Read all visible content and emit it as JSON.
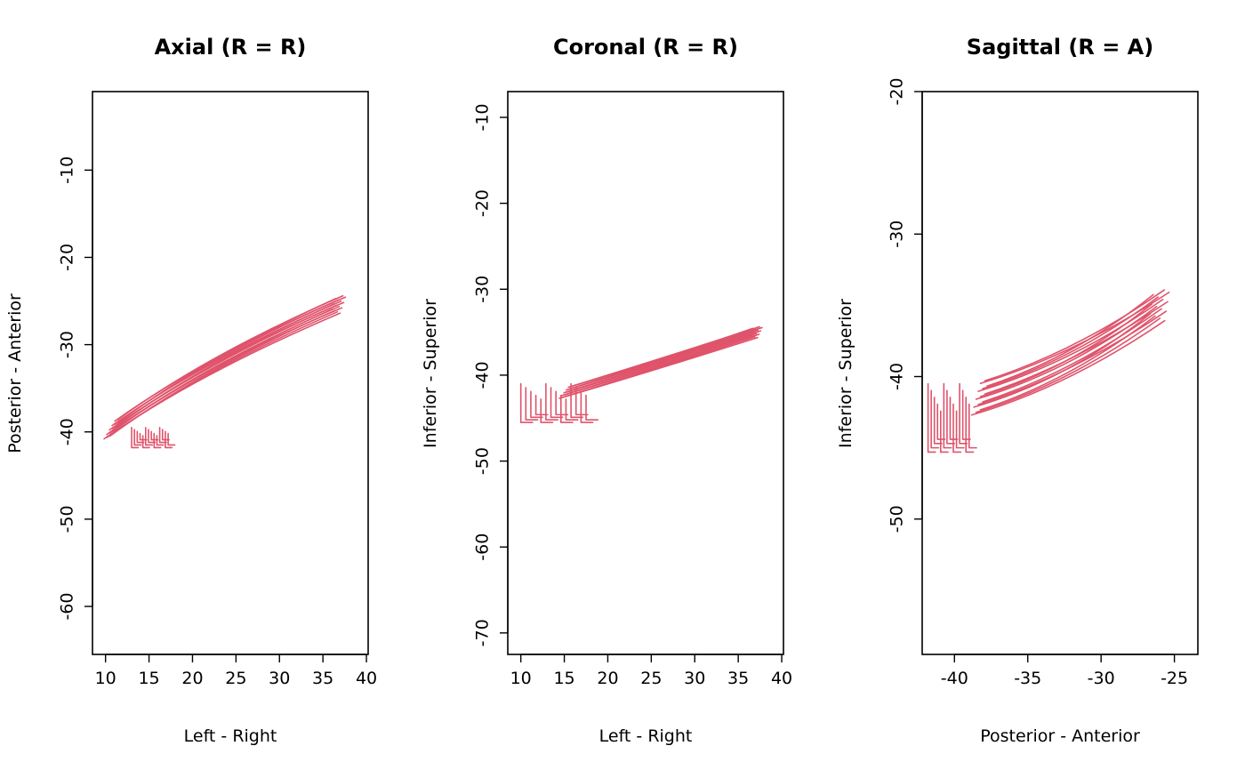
{
  "figure": {
    "stroke_color": "#df536b"
  },
  "chart_data": [
    {
      "type": "line",
      "title": "Axial (R = R)",
      "xlabel": "Left - Right",
      "ylabel": "Posterior - Anterior",
      "xlim": [
        8.5,
        40.2
      ],
      "ylim": [
        -65.5,
        -1
      ],
      "xticks": [
        10,
        15,
        20,
        25,
        30,
        35,
        40
      ],
      "yticks": [
        -60,
        -50,
        -40,
        -30,
        -20,
        -10
      ],
      "tick_labels_x": [
        "10",
        "15",
        "20",
        "25",
        "30",
        "35",
        "40"
      ],
      "tick_labels_y": [
        "-60",
        "-50",
        "-40",
        "-30",
        "-20",
        "-10"
      ],
      "grid": false,
      "streamline_count": 14,
      "bundle": {
        "start": [
          10.5,
          -39.7
        ],
        "mid": [
          21,
          -32.3
        ],
        "end": [
          37.3,
          -25.4
        ],
        "spread_y": 2.2,
        "tail_x": [
          13,
          17.2
        ],
        "tail_y": [
          -39.5,
          -41.8
        ]
      }
    },
    {
      "type": "line",
      "title": "Coronal (R = R)",
      "xlabel": "Left - Right",
      "ylabel": "Inferior - Superior",
      "xlim": [
        8.5,
        40.2
      ],
      "ylim": [
        -72.5,
        -7
      ],
      "xticks": [
        10,
        15,
        20,
        25,
        30,
        35,
        40
      ],
      "yticks": [
        -70,
        -60,
        -50,
        -40,
        -30,
        -20,
        -10
      ],
      "tick_labels_x": [
        "10",
        "15",
        "20",
        "25",
        "30",
        "35",
        "40"
      ],
      "tick_labels_y": [
        "-70",
        "-60",
        "-50",
        "-40",
        "-30",
        "-20",
        "-10"
      ],
      "grid": false,
      "streamline_count": 14,
      "bundle": {
        "start": [
          15,
          -42
        ],
        "mid": [
          25,
          -39
        ],
        "end": [
          37.5,
          -35
        ],
        "spread_y": 1.4,
        "tail_x": [
          10,
          17.5
        ],
        "tail_y": [
          -41,
          -45.5
        ]
      }
    },
    {
      "type": "line",
      "title": "Sagittal (R = A)",
      "xlabel": "Posterior - Anterior",
      "ylabel": "Inferior - Superior",
      "xlim": [
        -42.2,
        -23.4
      ],
      "ylim": [
        -59.5,
        -20
      ],
      "xticks": [
        -40,
        -35,
        -30,
        -25
      ],
      "yticks": [
        -50,
        -40,
        -30,
        -20
      ],
      "tick_labels_x": [
        "-40",
        "-35",
        "-30",
        "-25"
      ],
      "tick_labels_y": [
        "-50",
        "-40",
        "-30",
        "-20"
      ],
      "grid": false,
      "streamline_count": 14,
      "bundle": {
        "start": [
          -38.5,
          -41.5
        ],
        "mid": [
          -32,
          -39.5
        ],
        "end": [
          -25.5,
          -35
        ],
        "spread_y": 2.4,
        "tail_x": [
          -41.8,
          -39
        ],
        "tail_y": [
          -40.5,
          -45.3
        ]
      }
    }
  ]
}
